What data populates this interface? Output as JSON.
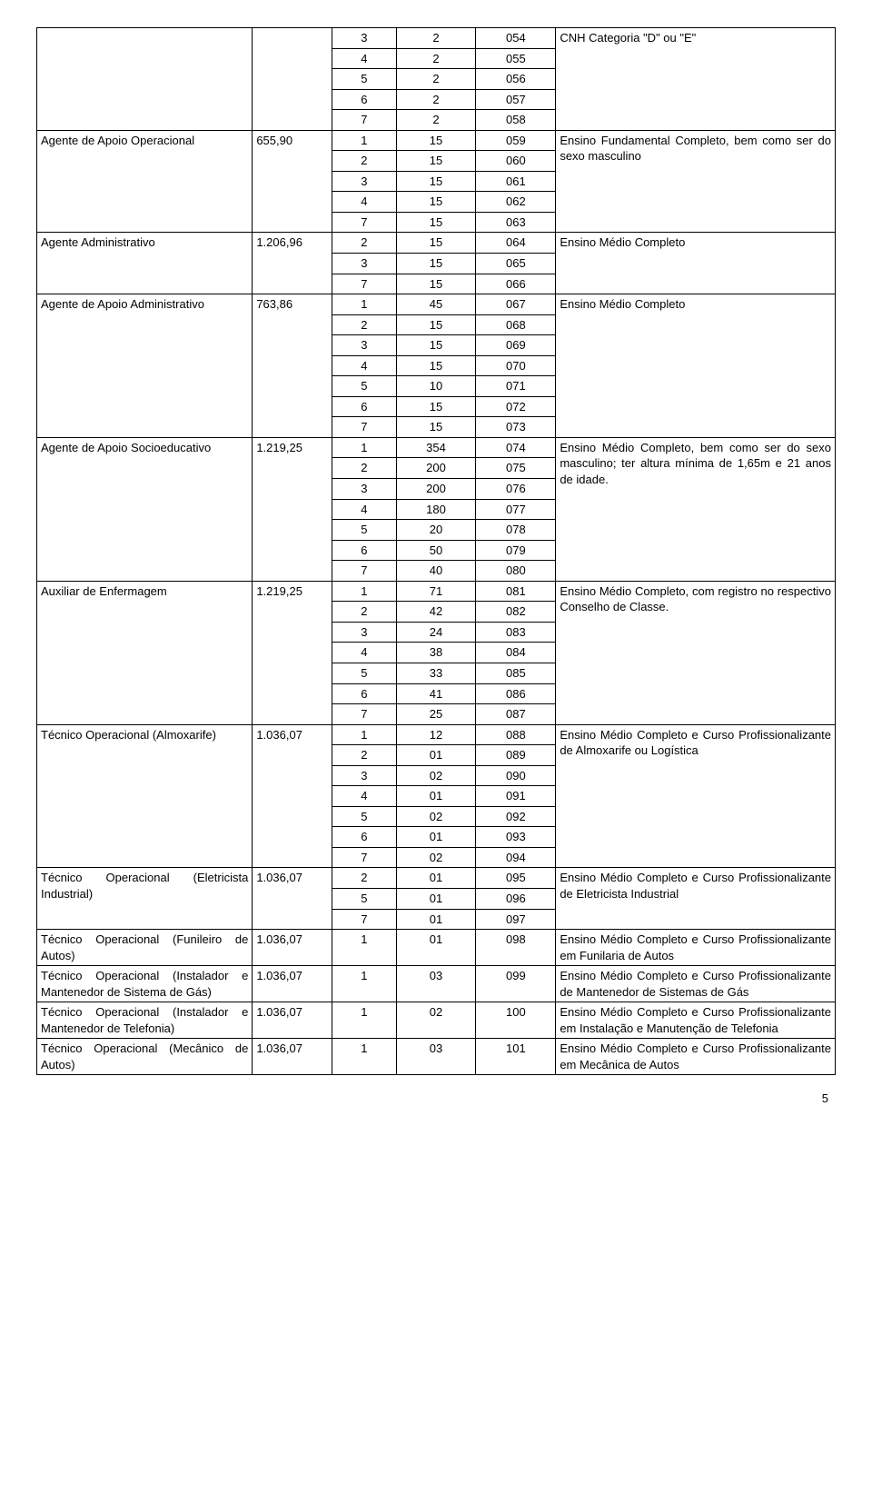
{
  "page_number": "5",
  "columns": {
    "role_width": "27%",
    "sal_width": "10%",
    "a_width": "8%",
    "b_width": "10%",
    "c_width": "10%",
    "req_width": "35%"
  },
  "colors": {
    "border": "#000000",
    "bg": "#ffffff",
    "text": "#000000"
  },
  "fonts": {
    "body_size_pt": 10,
    "family": "Arial"
  },
  "roles": [
    {
      "name": "",
      "salary": "",
      "req": "CNH Categoria \"D\" ou \"E\"",
      "rows": [
        {
          "a": "3",
          "b": "2",
          "c": "054"
        },
        {
          "a": "4",
          "b": "2",
          "c": "055"
        },
        {
          "a": "5",
          "b": "2",
          "c": "056"
        },
        {
          "a": "6",
          "b": "2",
          "c": "057"
        },
        {
          "a": "7",
          "b": "2",
          "c": "058"
        }
      ]
    },
    {
      "name": "Agente de Apoio Operacional",
      "salary": "655,90",
      "req": "Ensino Fundamental Completo, bem como ser do sexo masculino",
      "rows": [
        {
          "a": "1",
          "b": "15",
          "c": "059"
        },
        {
          "a": "2",
          "b": "15",
          "c": "060"
        },
        {
          "a": "3",
          "b": "15",
          "c": "061"
        },
        {
          "a": "4",
          "b": "15",
          "c": "062"
        },
        {
          "a": "7",
          "b": "15",
          "c": "063"
        }
      ]
    },
    {
      "name": "Agente Administrativo",
      "salary": "1.206,96",
      "req": "Ensino Médio Completo",
      "rows": [
        {
          "a": "2",
          "b": "15",
          "c": "064"
        },
        {
          "a": "3",
          "b": "15",
          "c": "065"
        },
        {
          "a": "7",
          "b": "15",
          "c": "066"
        }
      ]
    },
    {
      "name": "Agente de Apoio Administrativo",
      "salary": "763,86",
      "req": "Ensino Médio Completo",
      "rows": [
        {
          "a": "1",
          "b": "45",
          "c": "067"
        },
        {
          "a": "2",
          "b": "15",
          "c": "068"
        },
        {
          "a": "3",
          "b": "15",
          "c": "069"
        },
        {
          "a": "4",
          "b": "15",
          "c": "070"
        },
        {
          "a": "5",
          "b": "10",
          "c": "071"
        },
        {
          "a": "6",
          "b": "15",
          "c": "072"
        },
        {
          "a": "7",
          "b": "15",
          "c": "073"
        }
      ]
    },
    {
      "name": "Agente de Apoio Socioeducativo",
      "salary": "1.219,25",
      "req": "Ensino Médio Completo, bem como ser do sexo masculino; ter altura mínima de 1,65m e 21 anos de idade.",
      "rows": [
        {
          "a": "1",
          "b": "354",
          "c": "074"
        },
        {
          "a": "2",
          "b": "200",
          "c": "075"
        },
        {
          "a": "3",
          "b": "200",
          "c": "076"
        },
        {
          "a": "4",
          "b": "180",
          "c": "077"
        },
        {
          "a": "5",
          "b": "20",
          "c": "078"
        },
        {
          "a": "6",
          "b": "50",
          "c": "079"
        },
        {
          "a": "7",
          "b": "40",
          "c": "080"
        }
      ]
    },
    {
      "name": "Auxiliar de Enfermagem",
      "salary": "1.219,25",
      "req": "Ensino Médio Completo, com registro no respectivo Conselho de Classe.",
      "rows": [
        {
          "a": "1",
          "b": "71",
          "c": "081"
        },
        {
          "a": "2",
          "b": "42",
          "c": "082"
        },
        {
          "a": "3",
          "b": "24",
          "c": "083"
        },
        {
          "a": "4",
          "b": "38",
          "c": "084"
        },
        {
          "a": "5",
          "b": "33",
          "c": "085"
        },
        {
          "a": "6",
          "b": "41",
          "c": "086"
        },
        {
          "a": "7",
          "b": "25",
          "c": "087"
        }
      ]
    },
    {
      "name": "Técnico Operacional (Almoxarife)",
      "salary": "1.036,07",
      "req": "Ensino Médio Completo e Curso Profissionalizante de Almoxarife ou  Logística",
      "rows": [
        {
          "a": "1",
          "b": "12",
          "c": "088"
        },
        {
          "a": "2",
          "b": "01",
          "c": "089"
        },
        {
          "a": "3",
          "b": "02",
          "c": "090"
        },
        {
          "a": "4",
          "b": "01",
          "c": "091"
        },
        {
          "a": "5",
          "b": "02",
          "c": "092"
        },
        {
          "a": "6",
          "b": "01",
          "c": "093"
        },
        {
          "a": "7",
          "b": "02",
          "c": "094"
        }
      ]
    },
    {
      "name": "Técnico Operacional (Eletricista Industrial)",
      "salary": "1.036,07",
      "req": "Ensino Médio Completo e Curso Profissionalizante de Eletricista Industrial",
      "rows": [
        {
          "a": "2",
          "b": "01",
          "c": "095"
        },
        {
          "a": "5",
          "b": "01",
          "c": "096"
        },
        {
          "a": "7",
          "b": "01",
          "c": "097"
        }
      ]
    },
    {
      "name": "Técnico Operacional (Funileiro de Autos)",
      "salary": "1.036,07",
      "req": "Ensino Médio Completo e Curso Profissionalizante em Funilaria de Autos",
      "rows": [
        {
          "a": "1",
          "b": "01",
          "c": "098"
        }
      ]
    },
    {
      "name": "Técnico Operacional (Instalador e Mantenedor de Sistema de Gás)",
      "salary": "1.036,07",
      "req": "Ensino Médio Completo e Curso Profissionalizante de Mantenedor de Sistemas de Gás",
      "rows": [
        {
          "a": "1",
          "b": "03",
          "c": "099"
        }
      ]
    },
    {
      "name": "Técnico Operacional (Instalador e Mantenedor de Telefonia)",
      "salary": "1.036,07",
      "req": "Ensino Médio Completo e Curso Profissionalizante em Instalação e Manutenção de Telefonia",
      "rows": [
        {
          "a": "1",
          "b": "02",
          "c": "100"
        }
      ]
    },
    {
      "name": "Técnico Operacional (Mecânico de Autos)",
      "salary": "1.036,07",
      "req": "Ensino Médio Completo e Curso Profissionalizante em Mecânica de Autos",
      "rows": [
        {
          "a": "1",
          "b": "03",
          "c": "101"
        }
      ]
    }
  ]
}
